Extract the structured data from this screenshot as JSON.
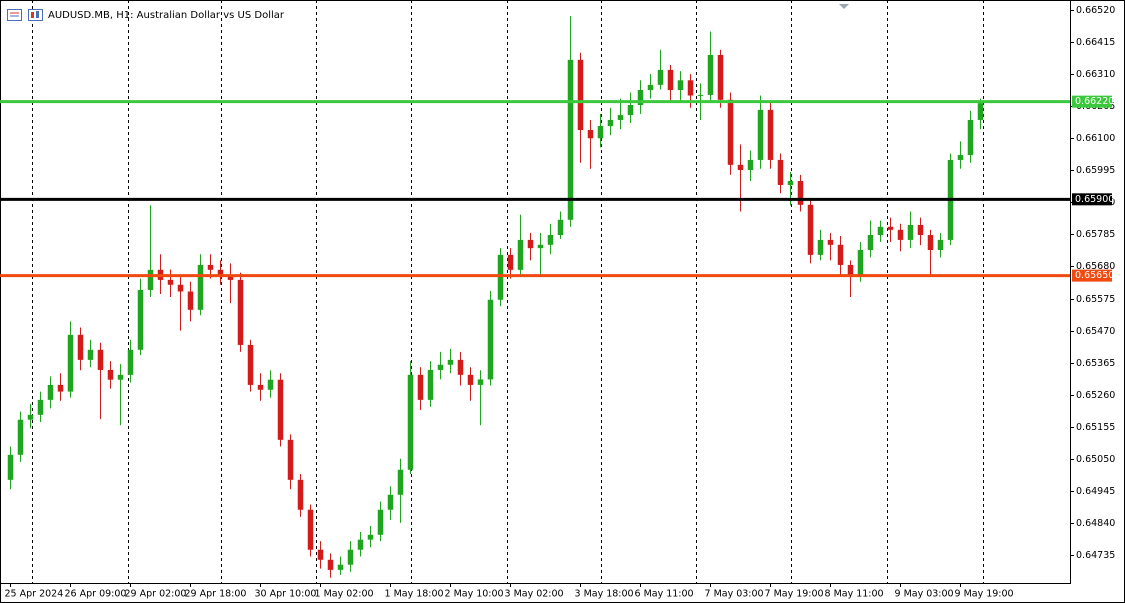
{
  "chart_data": {
    "type": "candlestick",
    "title": "AUDUSD.MB, H1:  Australian Dollar vs US Dollar",
    "bull_color": "#1fa51f",
    "bear_color": "#d21b1b",
    "xlim": [
      -1,
      106
    ],
    "xticks": [
      {
        "value": 0,
        "label": "25 Apr 2024"
      },
      {
        "value": 6,
        "label": "26 Apr 09:00"
      },
      {
        "value": 12,
        "label": "29 Apr 02:00"
      },
      {
        "value": 18,
        "label": "29 Apr 18:00"
      },
      {
        "value": 25,
        "label": "30 Apr 10:00"
      },
      {
        "value": 31,
        "label": "1 May 02:00"
      },
      {
        "value": 38,
        "label": "1 May 18:00"
      },
      {
        "value": 44,
        "label": "2 May 10:00"
      },
      {
        "value": 50,
        "label": "3 May 02:00"
      },
      {
        "value": 57,
        "label": "3 May 18:00"
      },
      {
        "value": 63,
        "label": "6 May 11:00"
      },
      {
        "value": 70,
        "label": "7 May 03:00"
      },
      {
        "value": 76,
        "label": "7 May 19:00"
      },
      {
        "value": 82,
        "label": "8 May 11:00"
      },
      {
        "value": 89,
        "label": "9 May 03:00"
      },
      {
        "value": 95,
        "label": "9 May 19:00"
      }
    ],
    "ylim": [
      0.64643,
      0.66553
    ],
    "yticks": [
      {
        "value": 0.6652,
        "label": "0.66520"
      },
      0.66415,
      {
        "value": 0.6631,
        "label": "0.66310"
      },
      0.66205,
      {
        "value": 0.661,
        "label": "0.66100"
      },
      0.65995,
      {
        "value": 0.6589,
        "label": "0.65890"
      },
      0.65785,
      {
        "value": 0.6568,
        "label": "0.65680"
      },
      0.65575,
      {
        "value": 0.6547,
        "label": "0.65470"
      },
      0.65365,
      {
        "value": 0.6526,
        "label": "0.65260"
      },
      0.65155,
      {
        "value": 0.6505,
        "label": "0.65050"
      },
      0.64945,
      {
        "value": 0.6484,
        "label": "0.64840"
      },
      0.64735
    ],
    "price_lines": [
      {
        "value": 0.6622,
        "label": "0.66220",
        "color": "#3cc83c"
      },
      {
        "value": 0.659,
        "label": "0.65900",
        "color": "#000000"
      },
      {
        "value": 0.6565,
        "label": "0.65650",
        "color": "#f04a10"
      }
    ],
    "open": [
      0.64981,
      0.65063,
      0.65178,
      0.65194,
      0.65243,
      0.65292,
      0.6527,
      0.65456,
      0.65374,
      0.65407,
      0.65341,
      0.65309,
      0.65325,
      0.65407,
      0.65603,
      0.65669,
      0.65636,
      0.6562,
      0.65598,
      0.65538,
      0.65685,
      0.65669,
      0.65652,
      0.65636,
      0.65423,
      0.65292,
      0.65276,
      0.65309,
      0.65112,
      0.64981,
      0.64883,
      0.64752,
      0.64719,
      0.64686,
      0.64703,
      0.64752,
      0.64785,
      0.64801,
      0.64883,
      0.64932,
      0.65014,
      0.65325,
      0.65243,
      0.65341,
      0.65358,
      0.65374,
      0.65325,
      0.65292,
      0.6531,
      0.65571,
      0.65718,
      0.65669,
      0.65767,
      0.6574,
      0.65751,
      0.65783,
      0.65833,
      0.66357,
      0.66127,
      0.661,
      0.6614,
      0.6616,
      0.66176,
      0.66209,
      0.66258,
      0.66275,
      0.66324,
      0.66258,
      0.6629,
      0.6624,
      0.66242,
      0.66373,
      0.66226,
      0.66013,
      0.65996,
      0.66029,
      0.66193,
      0.66029,
      0.65947,
      0.6596,
      0.65882,
      0.65718,
      0.65767,
      0.65751,
      0.65685,
      0.65652,
      0.65734,
      0.65783,
      0.6581,
      0.658,
      0.65767,
      0.65816,
      0.65783,
      0.65734,
      0.65767,
      0.66029,
      0.66045,
      0.6616
    ],
    "high": [
      0.6509,
      0.65205,
      0.6523,
      0.6527,
      0.6532,
      0.6533,
      0.655,
      0.6548,
      0.6544,
      0.6543,
      0.6537,
      0.6536,
      0.6544,
      0.6564,
      0.6588,
      0.6572,
      0.6567,
      0.6565,
      0.6563,
      0.6572,
      0.6572,
      0.657,
      0.6569,
      0.6566,
      0.6544,
      0.6533,
      0.6534,
      0.6533,
      0.6513,
      0.65,
      0.649,
      0.6478,
      0.6474,
      0.6473,
      0.6478,
      0.6481,
      0.6483,
      0.6491,
      0.6496,
      0.6505,
      0.6537,
      0.6535,
      0.6537,
      0.654,
      0.6541,
      0.654,
      0.6535,
      0.6534,
      0.656,
      0.6574,
      0.6574,
      0.6585,
      0.6579,
      0.6579,
      0.6582,
      0.6586,
      0.665,
      0.6638,
      0.6616,
      0.6618,
      0.662,
      0.6623,
      0.6625,
      0.6629,
      0.6631,
      0.6639,
      0.6634,
      0.6632,
      0.6631,
      0.6628,
      0.6645,
      0.6639,
      0.6625,
      0.6608,
      0.6606,
      0.6624,
      0.6622,
      0.6605,
      0.6599,
      0.6598,
      0.659,
      0.658,
      0.6579,
      0.6578,
      0.657,
      0.6576,
      0.6583,
      0.6583,
      0.6584,
      0.6582,
      0.6586,
      0.6584,
      0.658,
      0.6579,
      0.6605,
      0.6609,
      0.6619,
      0.6623
    ],
    "low": [
      0.6495,
      0.6504,
      0.6515,
      0.6517,
      0.65215,
      0.6524,
      0.6525,
      0.6534,
      0.6535,
      0.6518,
      0.6528,
      0.6516,
      0.653,
      0.6539,
      0.6558,
      0.6559,
      0.6558,
      0.6547,
      0.655,
      0.6552,
      0.6564,
      0.6562,
      0.6556,
      0.654,
      0.6527,
      0.6524,
      0.6525,
      0.6509,
      0.6495,
      0.6486,
      0.6473,
      0.6469,
      0.6466,
      0.6467,
      0.6468,
      0.6473,
      0.6476,
      0.6478,
      0.6485,
      0.6484,
      0.65,
      0.6521,
      0.6522,
      0.6531,
      0.6533,
      0.6529,
      0.6524,
      0.6516,
      0.6529,
      0.6555,
      0.6564,
      0.6565,
      0.657,
      0.6565,
      0.6572,
      0.6577,
      0.6581,
      0.6602,
      0.66,
      0.6607,
      0.6611,
      0.6613,
      0.6615,
      0.6618,
      0.6623,
      0.6626,
      0.6622,
      0.6622,
      0.662,
      0.6616,
      0.6622,
      0.662,
      0.6598,
      0.6586,
      0.6596,
      0.66,
      0.66,
      0.6592,
      0.6588,
      0.6586,
      0.6569,
      0.657,
      0.657,
      0.6565,
      0.6558,
      0.6563,
      0.6571,
      0.6576,
      0.6576,
      0.6573,
      0.6574,
      0.6575,
      0.6565,
      0.6571,
      0.6575,
      0.66,
      0.6602,
      0.6613
    ],
    "close": [
      0.65063,
      0.65178,
      0.65194,
      0.65243,
      0.65292,
      0.6527,
      0.65456,
      0.65374,
      0.65407,
      0.65341,
      0.65309,
      0.65325,
      0.65407,
      0.65603,
      0.65669,
      0.65636,
      0.6562,
      0.65598,
      0.65538,
      0.65685,
      0.65669,
      0.65652,
      0.65636,
      0.65423,
      0.65292,
      0.65276,
      0.65309,
      0.65112,
      0.64981,
      0.64883,
      0.64752,
      0.64719,
      0.64686,
      0.64703,
      0.64752,
      0.64785,
      0.64801,
      0.64883,
      0.64932,
      0.65014,
      0.65325,
      0.65243,
      0.65341,
      0.65358,
      0.65374,
      0.65325,
      0.65292,
      0.6531,
      0.65571,
      0.65718,
      0.65669,
      0.65767,
      0.6574,
      0.65751,
      0.65783,
      0.65833,
      0.66357,
      0.66127,
      0.661,
      0.6614,
      0.6616,
      0.66176,
      0.66209,
      0.66258,
      0.66275,
      0.66324,
      0.66258,
      0.6629,
      0.6624,
      0.66242,
      0.66373,
      0.66226,
      0.66013,
      0.65996,
      0.66029,
      0.66193,
      0.66029,
      0.65947,
      0.6596,
      0.65882,
      0.65718,
      0.65767,
      0.65751,
      0.65685,
      0.65652,
      0.65734,
      0.65783,
      0.6581,
      0.658,
      0.65767,
      0.65816,
      0.65783,
      0.65734,
      0.65767,
      0.66029,
      0.66045,
      0.6616,
      0.66215
    ]
  }
}
